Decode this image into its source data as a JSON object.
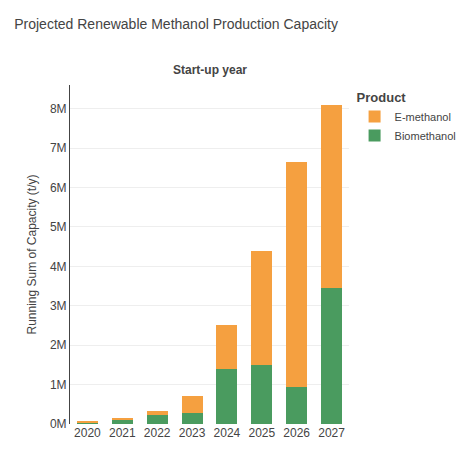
{
  "chart_data": {
    "type": "bar",
    "title": "Projected Renewable Methanol Production Capacity",
    "subtitle": "Start-up year",
    "ylabel": "Running Sum of Capacity (t/y)",
    "categories": [
      "2020",
      "2021",
      "2022",
      "2023",
      "2024",
      "2025",
      "2026",
      "2027"
    ],
    "series": [
      {
        "name": "Biomethanol",
        "color": "#4A9B5F",
        "values": [
          0.05,
          0.12,
          0.22,
          0.27,
          1.4,
          1.5,
          0.95,
          3.45
        ]
      },
      {
        "name": "E-methanol",
        "color": "#F5A040",
        "values": [
          0.01,
          0.02,
          0.12,
          0.45,
          1.1,
          2.9,
          5.7,
          4.65
        ]
      }
    ],
    "stacked": true,
    "ylim": [
      0,
      8.6
    ],
    "yticks": [
      {
        "value": 0,
        "label": "0M"
      },
      {
        "value": 1,
        "label": "1M"
      },
      {
        "value": 2,
        "label": "2M"
      },
      {
        "value": 3,
        "label": "3M"
      },
      {
        "value": 4,
        "label": "4M"
      },
      {
        "value": 5,
        "label": "5M"
      },
      {
        "value": 6,
        "label": "6M"
      },
      {
        "value": 7,
        "label": "7M"
      },
      {
        "value": 8,
        "label": "8M"
      }
    ],
    "grid": true,
    "legend": "upper right",
    "legend_title": "Product"
  }
}
